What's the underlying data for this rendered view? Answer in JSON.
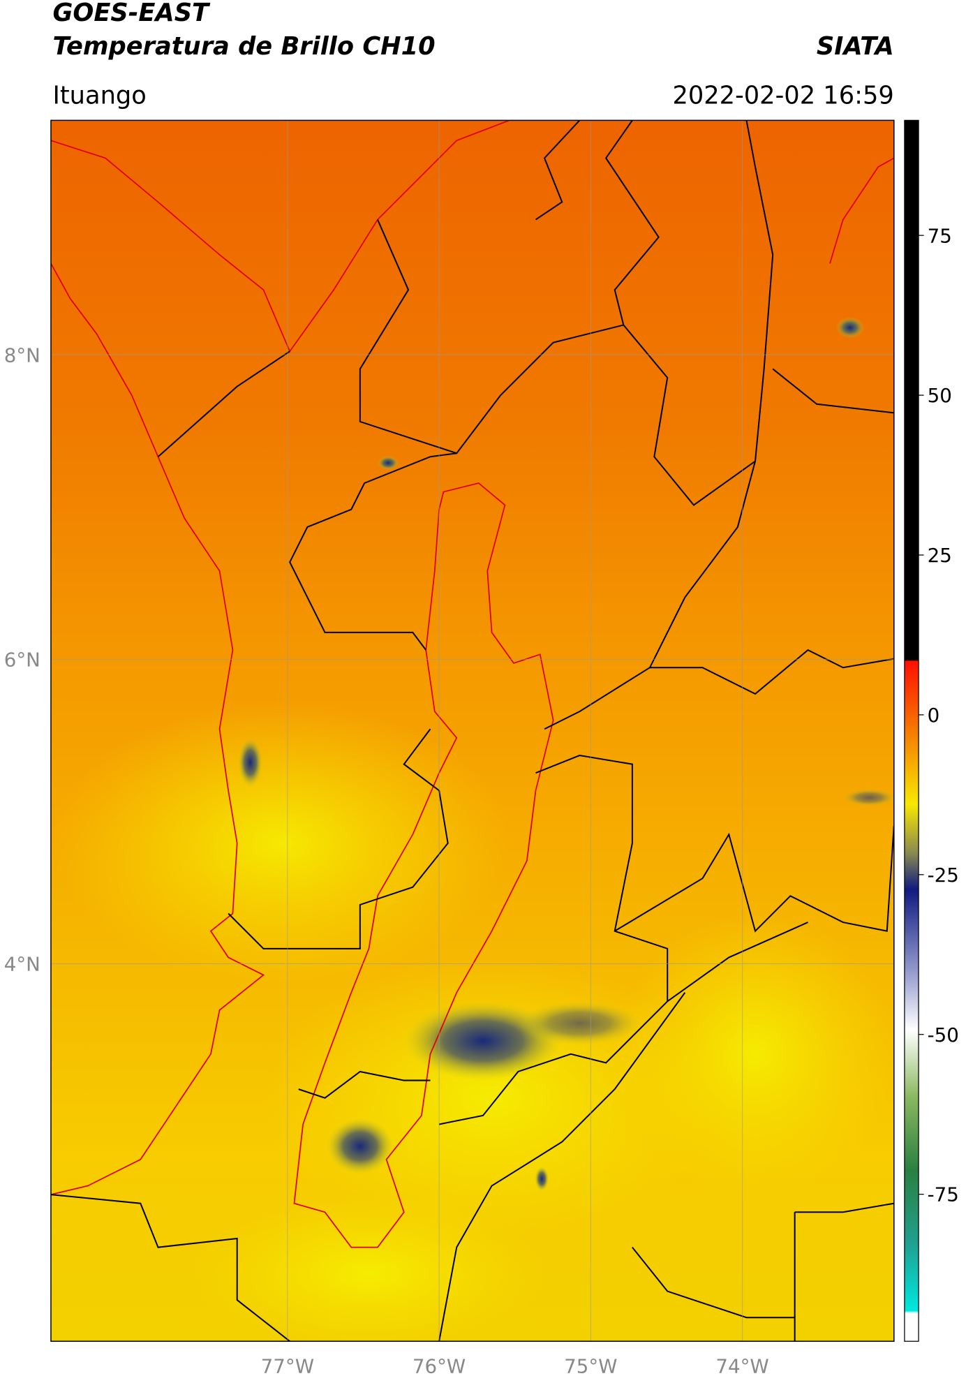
{
  "header": {
    "title": "GOES-EAST",
    "subtitle": "Temperatura de Brillo CH10",
    "source": "SIATA",
    "location": "Ituango",
    "datetime": "2022-02-02 16:59"
  },
  "map": {
    "xlim": [
      -78.56,
      -73.0
    ],
    "ylim": [
      1.52,
      9.54
    ],
    "xticks": [
      {
        "value": -77,
        "label": "77°W"
      },
      {
        "value": -76,
        "label": "76°W"
      },
      {
        "value": -75,
        "label": "75°W"
      },
      {
        "value": -74,
        "label": "74°W"
      }
    ],
    "yticks": [
      {
        "value": 4,
        "label": "4°N"
      },
      {
        "value": 6,
        "label": "6°N"
      },
      {
        "value": 8,
        "label": "8°N"
      }
    ],
    "grid": true
  },
  "colorbar": {
    "lim": [
      -98,
      93
    ],
    "ticks": [
      75,
      50,
      25,
      0,
      -25,
      -50,
      -75
    ]
  }
}
